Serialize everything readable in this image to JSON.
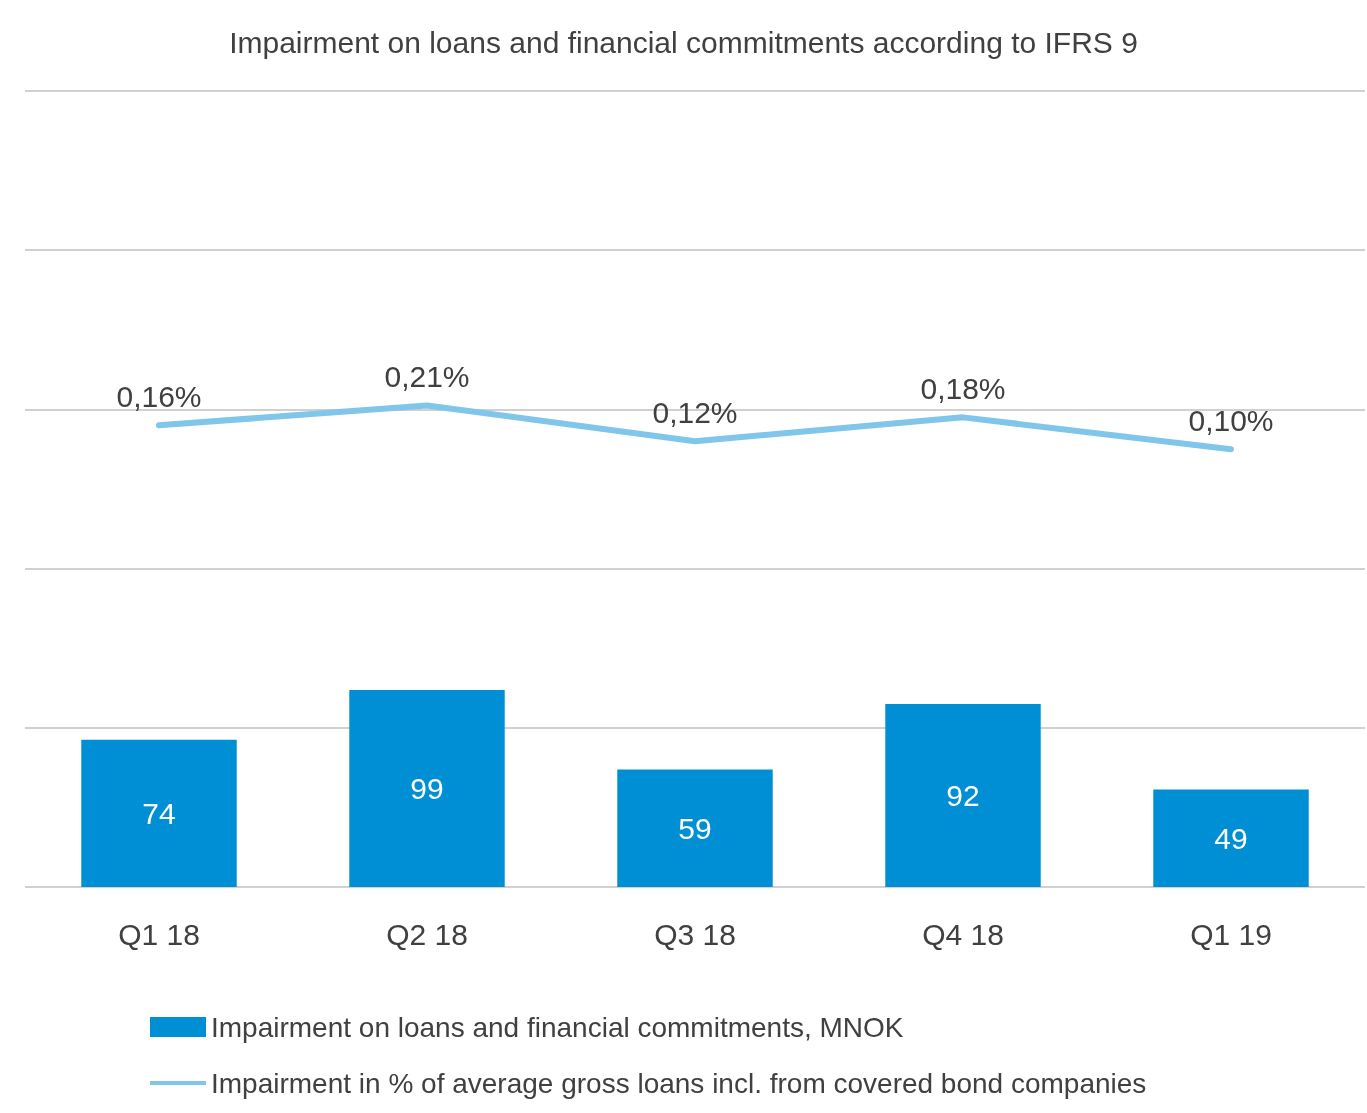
{
  "chart_data": {
    "type": "bar",
    "title": "Impairment on loans and financial commitments according to IFRS 9",
    "categories": [
      "Q1 18",
      "Q2 18",
      "Q3 18",
      "Q4 18",
      "Q1 19"
    ],
    "series": [
      {
        "name": "Impairment on loans and financial commitments, MNOK",
        "color": "#008fd5",
        "values": [
          74,
          99,
          59,
          92,
          49
        ]
      },
      {
        "name": "Impairment in % of average gross loans incl. from covered bond companies",
        "type": "line",
        "axis": "y2",
        "color": "#7fc6ea",
        "values": [
          0.16,
          0.21,
          0.12,
          0.18,
          0.1
        ],
        "value_labels": [
          "0,16%",
          "0,21%",
          "0,12%",
          "0,18%",
          "0,10%"
        ]
      }
    ],
    "ylim": [
      0,
      400
    ],
    "yticks": [
      {
        "value": 0,
        "label": null
      },
      {
        "value": 80,
        "label": null
      },
      {
        "value": 160,
        "label": null
      },
      {
        "value": 240,
        "label": null
      },
      {
        "value": 320,
        "label": null
      },
      {
        "value": 400,
        "label": null
      }
    ],
    "y2lim": [
      -1,
      1
    ],
    "tick_labels": "x",
    "grid": "y",
    "legend": "bottom",
    "marker": "none",
    "line_style": "solid",
    "data_labels": true
  }
}
